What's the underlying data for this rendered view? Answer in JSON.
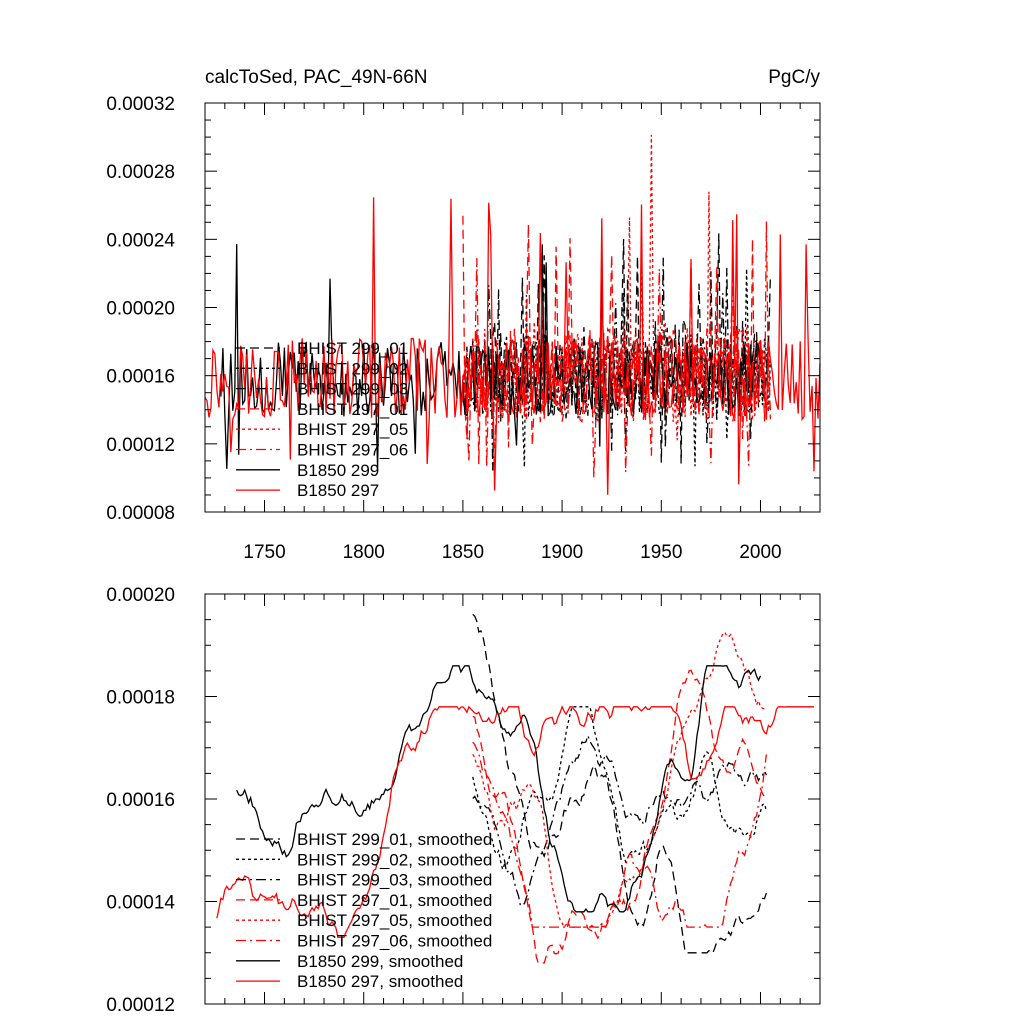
{
  "chart_data": [
    {
      "type": "line",
      "title": "calcToSed, PAC_49N-66N",
      "units": "PgC/y",
      "xlabel": "",
      "ylabel": "",
      "xlim": [
        1720,
        2030
      ],
      "ylim": [
        8e-05,
        0.00032
      ],
      "xticks": [
        1750,
        1800,
        1850,
        1900,
        1950,
        2000
      ],
      "xtick_labels": [
        "1750",
        "1800",
        "1850",
        "1900",
        "1950",
        "2000"
      ],
      "yticks": [
        8e-05,
        0.00012,
        0.00016,
        0.0002,
        0.00024,
        0.00028,
        0.00032
      ],
      "ytick_labels": [
        "0.00008",
        "0.00012",
        "0.00016",
        "0.00020",
        "0.00024",
        "0.00028",
        "0.00032"
      ],
      "legend_position": "left-center",
      "series": [
        {
          "name": "BHIST 299_01",
          "color": "#000000",
          "dash": "dashed",
          "seed": 11,
          "x_start": 1850,
          "x_end": 2005,
          "mean": 0.000165,
          "amp": 2.8e-05,
          "spike_max": 0.000245,
          "spike_min": 0.0001
        },
        {
          "name": "BHIST 299_02",
          "color": "#000000",
          "dash": "dotted",
          "seed": 23,
          "x_start": 1850,
          "x_end": 2005,
          "mean": 0.00016,
          "amp": 2.5e-05,
          "spike_max": 0.000235,
          "spike_min": 0.000105
        },
        {
          "name": "BHIST 299_03",
          "color": "#000000",
          "dash": "dashdot",
          "seed": 37,
          "x_start": 1850,
          "x_end": 2005,
          "mean": 0.000158,
          "amp": 2.5e-05,
          "spike_max": 0.00023,
          "spike_min": 0.0001
        },
        {
          "name": "BHIST 297_01",
          "color": "#ff0000",
          "dash": "dashed",
          "seed": 41,
          "x_start": 1850,
          "x_end": 2005,
          "mean": 0.00016,
          "amp": 2.8e-05,
          "spike_max": 0.000258,
          "spike_min": 0.000105
        },
        {
          "name": "BHIST 297_05",
          "color": "#ff0000",
          "dash": "dotted",
          "seed": 53,
          "x_start": 1850,
          "x_end": 2005,
          "mean": 0.000162,
          "amp": 3e-05,
          "spike_max": 0.000305,
          "spike_min": 0.000105
        },
        {
          "name": "BHIST 297_06",
          "color": "#ff0000",
          "dash": "dashdot",
          "seed": 67,
          "x_start": 1850,
          "x_end": 2005,
          "mean": 0.000158,
          "amp": 2.6e-05,
          "spike_max": 0.000255,
          "spike_min": 0.0001
        },
        {
          "name": "B1850 299",
          "color": "#000000",
          "dash": "solid",
          "seed": 79,
          "x_start": 1728,
          "x_end": 2000,
          "mean": 0.000158,
          "amp": 2.2e-05,
          "spike_max": 0.000248,
          "spike_min": 9.8e-05
        },
        {
          "name": "B1850 297",
          "color": "#ff0000",
          "dash": "solid",
          "seed": 97,
          "x_start": 1720,
          "x_end": 2030,
          "mean": 0.000158,
          "amp": 2.4e-05,
          "spike_max": 0.000265,
          "spike_min": 8.7e-05
        }
      ]
    },
    {
      "type": "line",
      "title": "",
      "xlim": [
        1720,
        2030
      ],
      "ylim": [
        0.00012,
        0.0002
      ],
      "xticks": [
        1750,
        1800,
        1850,
        1900,
        1950,
        2000
      ],
      "yticks": [
        0.00012,
        0.00014,
        0.00016,
        0.00018,
        0.0002
      ],
      "ytick_labels": [
        "0.00012",
        "0.00014",
        "0.00016",
        "0.00018",
        "0.00020"
      ],
      "legend_position": "bottom-left",
      "series": [
        {
          "name": "BHIST 299_01, smoothed",
          "color": "#000000",
          "dash": "dashed",
          "seed": 111,
          "x_start": 1855,
          "x_end": 2003,
          "mean": 0.000162,
          "amp": 1.4e-05,
          "start_val": 0.000198,
          "min_val": 0.00013,
          "max_val": 0.000198
        },
        {
          "name": "BHIST 299_02, smoothed",
          "color": "#000000",
          "dash": "dotted",
          "seed": 123,
          "x_start": 1855,
          "x_end": 2003,
          "mean": 0.00016,
          "amp": 1.2e-05,
          "start_val": 0.000165,
          "min_val": 0.000138,
          "max_val": 0.000178
        },
        {
          "name": "BHIST 299_03, smoothed",
          "color": "#000000",
          "dash": "dashdot",
          "seed": 137,
          "x_start": 1855,
          "x_end": 2003,
          "mean": 0.00016,
          "amp": 1.2e-05,
          "start_val": 0.00016,
          "min_val": 0.000138,
          "max_val": 0.000182
        },
        {
          "name": "BHIST 297_01, smoothed",
          "color": "#ff0000",
          "dash": "dashed",
          "seed": 141,
          "x_start": 1855,
          "x_end": 2003,
          "mean": 0.000162,
          "amp": 1.2e-05,
          "start_val": 0.000178,
          "min_val": 0.000128,
          "max_val": 0.000188
        },
        {
          "name": "BHIST 297_05, smoothed",
          "color": "#ff0000",
          "dash": "dotted",
          "seed": 153,
          "x_start": 1855,
          "x_end": 2003,
          "mean": 0.000165,
          "amp": 1.3e-05,
          "start_val": 0.00017,
          "min_val": 0.000135,
          "max_val": 0.000193
        },
        {
          "name": "BHIST 297_06, smoothed",
          "color": "#ff0000",
          "dash": "dashdot",
          "seed": 167,
          "x_start": 1855,
          "x_end": 2003,
          "mean": 0.00016,
          "amp": 1.2e-05,
          "start_val": 0.000172,
          "min_val": 0.000135,
          "max_val": 0.000185
        },
        {
          "name": "B1850 299, smoothed",
          "color": "#000000",
          "dash": "solid",
          "seed": 179,
          "x_start": 1736,
          "x_end": 2000,
          "mean": 0.000163,
          "amp": 1.3e-05,
          "start_val": 0.000162,
          "min_val": 0.000138,
          "max_val": 0.000186
        },
        {
          "name": "B1850 297, smoothed",
          "color": "#ff0000",
          "dash": "solid",
          "seed": 197,
          "x_start": 1726,
          "x_end": 2027,
          "mean": 0.00016,
          "amp": 1.2e-05,
          "start_val": 0.000137,
          "min_val": 0.000133,
          "max_val": 0.000178
        }
      ]
    }
  ]
}
